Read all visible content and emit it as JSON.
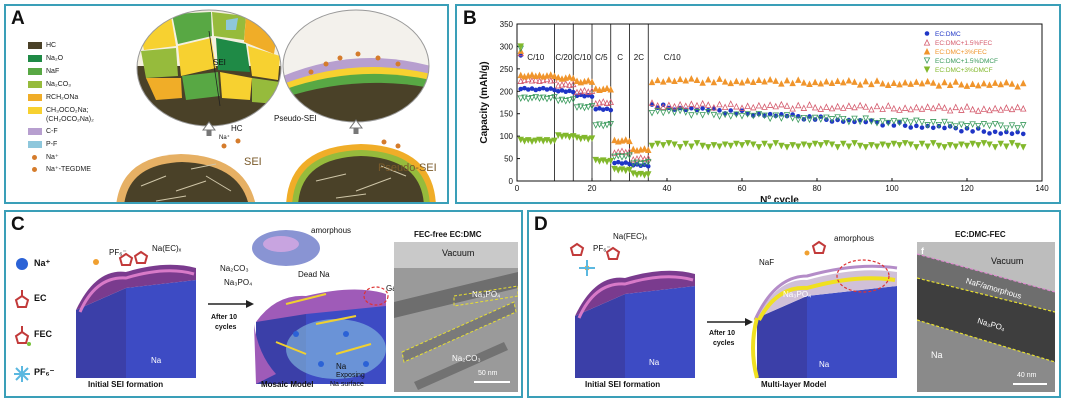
{
  "panel_a": {
    "label": "A",
    "legend": [
      {
        "text": "HC",
        "color": "#4a4128"
      },
      {
        "text": "Na₂O",
        "color": "#1f8a46"
      },
      {
        "text": "NaF",
        "color": "#58a844"
      },
      {
        "text": "Na₂CO₃",
        "color": "#96bb3c"
      },
      {
        "text": "RCH₂ONa",
        "color": "#f0ad28"
      },
      {
        "text": "CH₃OCO₂Na;",
        "text2": "(CH₂OCO₂Na)₂",
        "color": "#f7d130"
      },
      {
        "text": "C-F",
        "color": "#b79fcf"
      },
      {
        "text": "P-F",
        "color": "#8ec7dc"
      },
      {
        "text": "Na⁺",
        "color": "#d57c2c"
      },
      {
        "text": "Na⁺-TEGDME",
        "color": "#d57c2c"
      }
    ],
    "sei": "SEI",
    "hc": "HC",
    "pseudo_sei": "Pseudo-SEI",
    "na_plus": "Na⁺",
    "sei_big": "SEI",
    "pseudo_sei_big": "Pseudo-SEI"
  },
  "panel_b": {
    "label": "B",
    "chart_data": {
      "type": "scatter",
      "title": "",
      "xlabel": "Nº cycle",
      "ylabel": "Capacity (mAh/g)",
      "xlim": [
        0,
        140
      ],
      "ylim": [
        0,
        350
      ],
      "xticks": [
        "0",
        "20",
        "40",
        "60",
        "80",
        "100",
        "120",
        "140"
      ],
      "yticks": [
        "0",
        "50",
        "100",
        "150",
        "200",
        "250",
        "300",
        "350"
      ],
      "rate_segments": [
        {
          "label": "C/10",
          "start": 0,
          "end": 10
        },
        {
          "label": "C/20",
          "start": 10,
          "end": 15
        },
        {
          "label": "C/10",
          "start": 15,
          "end": 20
        },
        {
          "label": "C/5",
          "start": 20,
          "end": 25
        },
        {
          "label": "C",
          "start": 25,
          "end": 30
        },
        {
          "label": "2C",
          "start": 30,
          "end": 35
        },
        {
          "label": "C/10",
          "start": 35,
          "end": 135
        }
      ],
      "series": [
        {
          "name": "EC:DMC",
          "marker": "circle",
          "color": "#1f35c6",
          "segment_values": [
            205,
            200,
            190,
            160,
            40,
            35
          ],
          "long_start": 168,
          "long_end": 105
        },
        {
          "name": "EC:DMC+1.5%FEC",
          "marker": "triangle-open",
          "color": "#d45a6c",
          "segment_values": [
            225,
            215,
            200,
            175,
            65,
            50
          ],
          "long_start": 170,
          "long_end": 160
        },
        {
          "name": "EC:DMC+3%FEC",
          "marker": "triangle",
          "color": "#f0952c",
          "segment_values": [
            235,
            230,
            222,
            205,
            90,
            70
          ],
          "long_start": 225,
          "long_end": 215
        },
        {
          "name": "EC:DMC+1.5%DMCF",
          "marker": "triangle-down-open",
          "color": "#3a9a5c",
          "segment_values": [
            185,
            180,
            165,
            125,
            55,
            40
          ],
          "long_start": 155,
          "long_end": 120
        },
        {
          "name": "EC:DMC+3%DMCF",
          "marker": "triangle-down",
          "color": "#82b82c",
          "segment_values": [
            90,
            100,
            95,
            45,
            25,
            15
          ],
          "long_start": 80,
          "long_end": 80
        }
      ]
    }
  },
  "panel_c": {
    "label": "C",
    "legend": [
      {
        "text": "Na⁺"
      },
      {
        "text": "EC"
      },
      {
        "text": "FEC"
      },
      {
        "text": "PF₆⁻"
      }
    ],
    "pf6": "PF₆⁻",
    "na_ec": "Na(EC)ₓ",
    "na_left": "Na",
    "caption_left": "Initial SEI formation",
    "after_cycles_1": "After 10",
    "after_cycles_2": "cycles",
    "amorphous": "amorphous",
    "na2co3": "Na₂CO₃",
    "dead_na": "Dead Na",
    "na3po4": "Na₃PO₄",
    "gas": "Gas",
    "na_mid": "Na",
    "exposing_1": "Exposing",
    "exposing_2": "Na surface",
    "caption_mid": "Mosaic Model",
    "tem_title": "FEC-free EC:DMC",
    "tem_vacuum": "Vacuum",
    "tem_na3po4": "Na₃PO₄",
    "tem_na2co3": "Na₂CO₃",
    "tem_scale": "50 nm"
  },
  "panel_d": {
    "label": "D",
    "na_fec": "Na(FEC)ₓ",
    "pf6": "PF₆⁻",
    "na_left": "Na",
    "caption_left": "Initial SEI formation",
    "after_cycles_1": "After 10",
    "after_cycles_2": "cycles",
    "amorphous": "amorphous",
    "naf": "NaF",
    "na3po4": "Na₃PO₄",
    "na_mid": "Na",
    "caption_mid": "Multi-layer Model",
    "tem_title": "EC:DMC-FEC",
    "tem_f": "f",
    "tem_vacuum": "Vacuum",
    "tem_naf": "NaF/amorphous",
    "tem_na3po4": "Na₃PO₄",
    "tem_na": "Na",
    "tem_scale": "40 nm"
  }
}
